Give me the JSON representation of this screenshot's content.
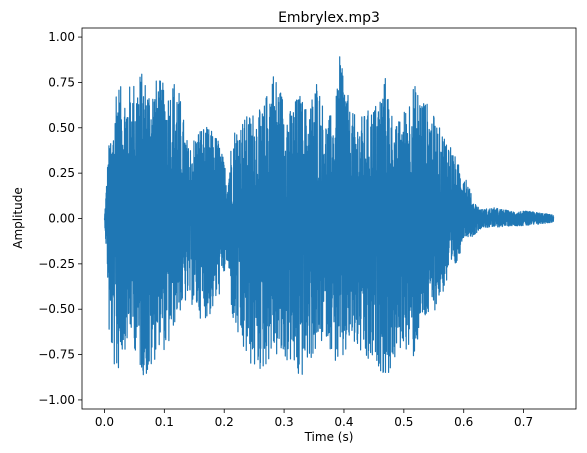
{
  "chart_data": {
    "type": "line",
    "title": "Embrylex.mp3",
    "xlabel": "Time (s)",
    "ylabel": "Amplitude",
    "xlim": [
      -0.0375,
      0.7875
    ],
    "ylim": [
      -1.05,
      1.05
    ],
    "grid": false,
    "legend": "none",
    "colors": {
      "series": "#1f77b4",
      "axes": "#000000",
      "background": "#ffffff"
    },
    "xticks": [
      0.0,
      0.1,
      0.2,
      0.3,
      0.4,
      0.5,
      0.6,
      0.7
    ],
    "xtick_labels": [
      "0.0",
      "0.1",
      "0.2",
      "0.3",
      "0.4",
      "0.5",
      "0.6",
      "0.7"
    ],
    "yticks": [
      1.0,
      0.75,
      0.5,
      0.25,
      0.0,
      -0.25,
      -0.5,
      -0.75,
      -1.0
    ],
    "ytick_labels": [
      "1.00",
      "0.75",
      "0.50",
      "0.25",
      "0.00",
      "−0.25",
      "−0.50",
      "−0.75",
      "−1.00"
    ],
    "series": [
      {
        "x_start": 0.0,
        "x_end": 0.75,
        "envelope": {
          "t": [
            0.0,
            0.005,
            0.008,
            0.012,
            0.02,
            0.03,
            0.045,
            0.06,
            0.075,
            0.09,
            0.105,
            0.12,
            0.14,
            0.16,
            0.175,
            0.19,
            0.205,
            0.215,
            0.23,
            0.25,
            0.265,
            0.28,
            0.295,
            0.31,
            0.325,
            0.34,
            0.355,
            0.37,
            0.385,
            0.395,
            0.41,
            0.425,
            0.44,
            0.455,
            0.47,
            0.485,
            0.5,
            0.515,
            0.53,
            0.545,
            0.56,
            0.575,
            0.59,
            0.6,
            0.615,
            0.63,
            0.65,
            0.68,
            0.71,
            0.75
          ],
          "max": [
            0.0,
            0.3,
            0.45,
            0.4,
            0.8,
            0.7,
            0.75,
            0.82,
            0.75,
            0.78,
            0.72,
            0.8,
            0.4,
            0.52,
            0.5,
            0.45,
            0.25,
            0.5,
            0.55,
            0.6,
            0.6,
            0.85,
            0.72,
            0.6,
            0.7,
            0.6,
            0.8,
            0.55,
            0.6,
            0.97,
            0.6,
            0.55,
            0.6,
            0.65,
            0.8,
            0.5,
            0.6,
            0.75,
            0.7,
            0.6,
            0.5,
            0.45,
            0.3,
            0.3,
            0.1,
            0.05,
            0.06,
            0.04,
            0.04,
            0.02
          ],
          "min": [
            0.0,
            -0.3,
            -0.7,
            -0.75,
            -0.9,
            -0.75,
            -0.65,
            -0.85,
            -0.9,
            -0.7,
            -0.75,
            -0.55,
            -0.45,
            -0.55,
            -0.55,
            -0.45,
            -0.25,
            -0.6,
            -0.75,
            -0.85,
            -0.85,
            -0.75,
            -0.8,
            -0.8,
            -0.93,
            -0.8,
            -0.75,
            -0.65,
            -0.8,
            -0.85,
            -0.7,
            -0.75,
            -0.85,
            -0.8,
            -0.9,
            -0.8,
            -0.7,
            -0.8,
            -0.6,
            -0.55,
            -0.45,
            -0.35,
            -0.25,
            -0.1,
            -0.1,
            -0.05,
            -0.05,
            -0.04,
            -0.04,
            -0.02
          ]
        }
      }
    ]
  }
}
